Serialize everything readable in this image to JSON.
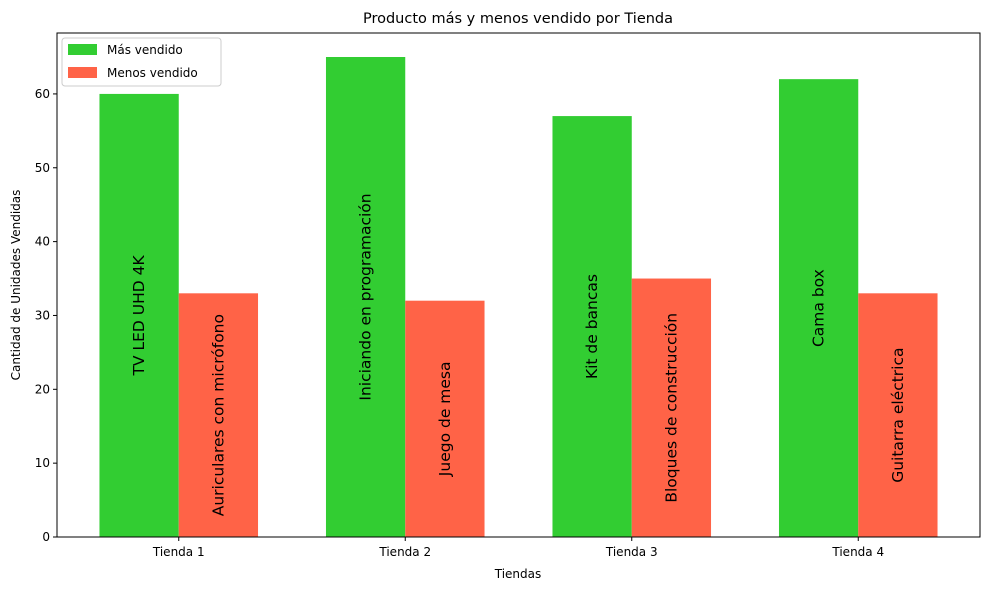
{
  "chart_data": {
    "type": "bar",
    "title": "Producto más y menos vendido por Tienda",
    "xlabel": "Tiendas",
    "ylabel": "Cantidad de Unidades Vendidas",
    "categories": [
      "Tienda 1",
      "Tienda 2",
      "Tienda 3",
      "Tienda 4"
    ],
    "ylim": [
      0,
      68.25
    ],
    "yticks": [
      0,
      10,
      20,
      30,
      40,
      50,
      60
    ],
    "grid": false,
    "legend_position": "top-left",
    "series": [
      {
        "name": "Más vendido",
        "color": "#32cd32",
        "values": [
          60,
          65,
          57,
          62
        ],
        "labels": [
          "TV LED UHD 4K",
          "Iniciando en programación",
          "Kit de bancas",
          "Cama box"
        ]
      },
      {
        "name": "Menos vendido",
        "color": "#ff6347",
        "values": [
          33,
          32,
          35,
          33
        ],
        "labels": [
          "Auriculares con micrófono",
          "Juego de mesa",
          "Bloques de construcción",
          "Guitarra eléctrica"
        ]
      }
    ]
  }
}
